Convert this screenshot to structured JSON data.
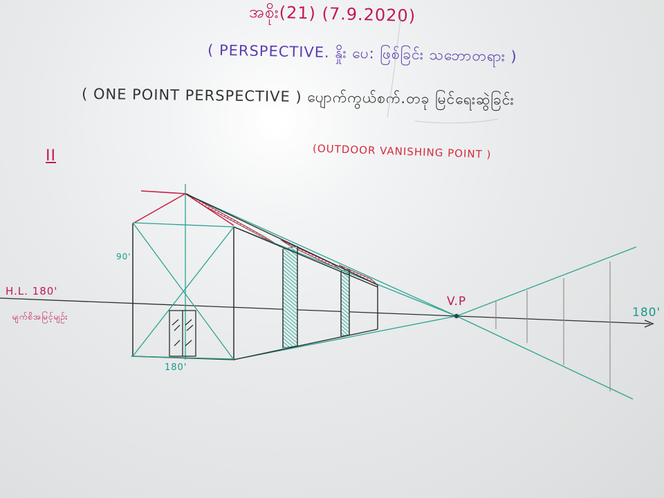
{
  "header": {
    "date_line": "အစိုး(21) (7.9.2020)",
    "perspective_line": "( PERSPECTIVE. နှိုး ပေ: ဖြစ်ခြင်း သဘောတရား )",
    "one_point_line": "( ONE POINT PERSPECTIVE ) ပျောက်ကွယ်စက်.တခု မြင်ရေးဆွဲခြင်း",
    "outdoor_line": "(OUTDOOR VANISHING POINT )"
  },
  "labels": {
    "section_numeral": "II",
    "horizon_line": "H.L. 180'",
    "horizon_note": "မျက်စိအမြင့်မျဉ်း",
    "height_90": "90'",
    "width_180": "180'",
    "right_180": "180'",
    "vanishing_point": "V.P"
  },
  "colors": {
    "board": "#e6e8e9",
    "magenta_marker": "#c2185b",
    "teal_marker": "#1a9a8a",
    "purple_marker": "#5b3fb0",
    "red_marker": "#d62a3e",
    "black_marker": "#333333"
  }
}
